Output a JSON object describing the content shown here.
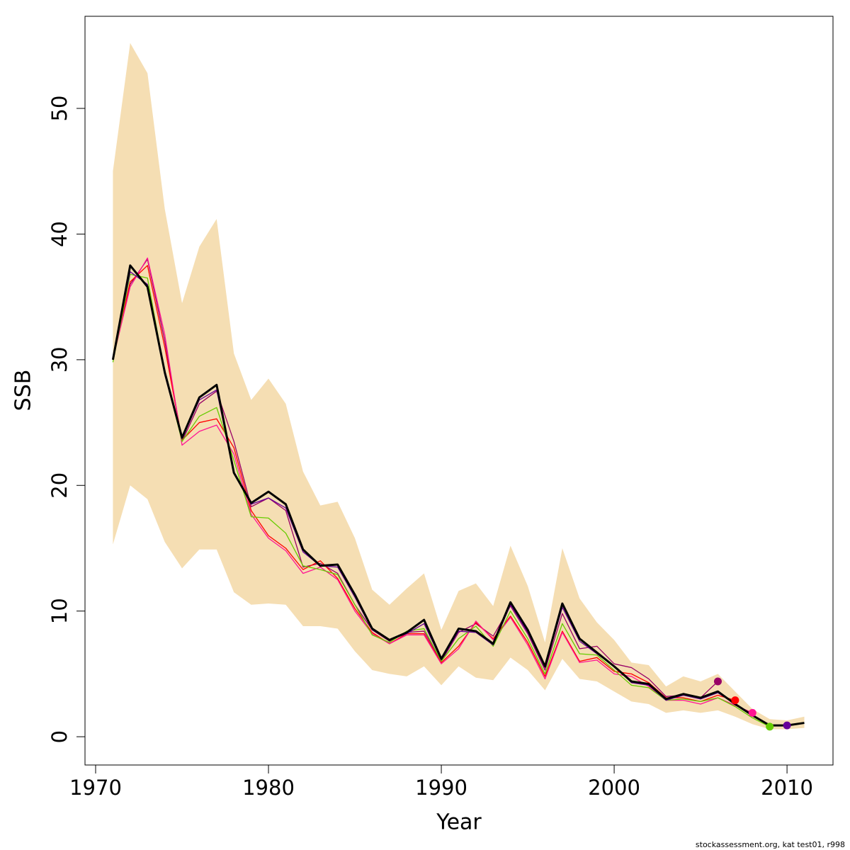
{
  "chart_data": {
    "type": "line",
    "x_label": "Year",
    "y_label": "SSB",
    "footnote": "stockassessment.org, kat  test01, r998",
    "x": [
      1971,
      1972,
      1973,
      1974,
      1975,
      1976,
      1977,
      1978,
      1979,
      1980,
      1981,
      1982,
      1983,
      1984,
      1985,
      1986,
      1987,
      1988,
      1989,
      1990,
      1991,
      1992,
      1993,
      1994,
      1995,
      1996,
      1997,
      1998,
      1999,
      2000,
      2001,
      2002,
      2003,
      2004,
      2005,
      2006,
      2007,
      2008,
      2009,
      2010,
      2011
    ],
    "xlim": [
      1969.385,
      2012.66
    ],
    "xticks": [
      1970,
      1980,
      1990,
      2000,
      2010
    ],
    "ylim": [
      -2.25,
      57.33
    ],
    "yticks": [
      0,
      10,
      20,
      30,
      40,
      50
    ],
    "band": {
      "color": "#f5deb3",
      "upper": [
        45,
        55.2,
        52.8,
        42,
        34.5,
        39,
        41.2,
        30.5,
        26.8,
        28.5,
        26.5,
        21.1,
        18.4,
        18.7,
        15.8,
        11.7,
        10.5,
        11.8,
        13.0,
        8.5,
        11.6,
        12.2,
        10.4,
        15.2,
        12.0,
        7.5,
        15.0,
        11.0,
        9.1,
        7.7,
        5.9,
        5.7,
        4.0,
        4.8,
        4.4,
        5.0,
        3.6,
        2.2,
        1.4,
        1.3,
        1.6
      ],
      "lower": [
        15.3,
        20,
        18.9,
        15.5,
        13.4,
        14.9,
        14.9,
        11.5,
        10.5,
        10.6,
        10.5,
        8.8,
        8.8,
        8.6,
        6.8,
        5.3,
        5.0,
        4.8,
        5.6,
        4.1,
        5.6,
        4.7,
        4.5,
        6.3,
        5.3,
        3.7,
        6.2,
        4.6,
        4.4,
        3.6,
        2.8,
        2.6,
        1.9,
        2.1,
        1.9,
        2.1,
        1.6,
        1.0,
        0.6,
        0.6,
        0.7
      ]
    },
    "series": [
      {
        "color": "#990066",
        "width": 1.3,
        "dot": true,
        "values": [
          30.2,
          36.0,
          38.0,
          31.5,
          23.5,
          26.5,
          27.5,
          23.5,
          18.3,
          19.0,
          18.0,
          13.5,
          13.8,
          13.0,
          10.5,
          8.5,
          7.6,
          8.3,
          8.4,
          6.0,
          8.3,
          9.0,
          8.0,
          10.4,
          8.2,
          5.3,
          9.8,
          7.0,
          7.2,
          5.8,
          5.5,
          4.6,
          3.2,
          3.3,
          3.1,
          4.4,
          null,
          null,
          null,
          null,
          null
        ]
      },
      {
        "color": "#ff0000",
        "width": 1.3,
        "dot": true,
        "values": [
          30.1,
          36.2,
          37.5,
          31.0,
          23.6,
          25.0,
          25.3,
          23.0,
          18.0,
          16.0,
          15.0,
          13.3,
          14.0,
          12.6,
          10.2,
          8.3,
          7.4,
          8.2,
          8.2,
          5.9,
          7.2,
          9.1,
          7.8,
          9.6,
          7.5,
          4.8,
          8.4,
          6.0,
          6.3,
          5.2,
          5.0,
          4.3,
          3.1,
          3.1,
          2.8,
          3.3,
          2.9,
          null,
          null,
          null,
          null
        ]
      },
      {
        "color": "#ff1493",
        "width": 1.3,
        "dot": true,
        "values": [
          30.0,
          35.8,
          38.1,
          32.0,
          23.2,
          24.3,
          24.8,
          22.5,
          17.7,
          15.8,
          14.8,
          13.0,
          13.5,
          12.5,
          10.0,
          8.2,
          7.4,
          8.1,
          8.1,
          5.8,
          7.0,
          9.2,
          7.7,
          9.5,
          7.3,
          4.6,
          8.3,
          5.9,
          6.1,
          5.0,
          4.8,
          4.0,
          2.9,
          2.9,
          2.6,
          3.1,
          2.5,
          1.9,
          null,
          null,
          null
        ]
      },
      {
        "color": "#66cc00",
        "width": 1.3,
        "dot": true,
        "values": [
          29.8,
          36.8,
          36.5,
          29.0,
          23.5,
          25.5,
          26.2,
          22.0,
          17.5,
          17.4,
          16.2,
          13.6,
          13.3,
          12.9,
          10.5,
          8.1,
          7.5,
          8.4,
          8.6,
          6.0,
          7.8,
          8.8,
          7.2,
          10.0,
          7.8,
          5.0,
          9.0,
          6.6,
          6.5,
          5.3,
          4.1,
          3.9,
          2.9,
          3.0,
          2.8,
          3.1,
          2.4,
          1.5,
          0.8,
          null,
          null
        ]
      },
      {
        "color": "#660099",
        "width": 1.3,
        "dot": true,
        "values": [
          30.1,
          37.0,
          36.0,
          28.8,
          23.7,
          26.8,
          27.6,
          21.0,
          18.5,
          19.0,
          18.2,
          14.7,
          13.6,
          13.5,
          11.1,
          8.5,
          7.7,
          8.2,
          9.0,
          6.1,
          8.4,
          8.3,
          7.3,
          10.5,
          8.3,
          5.5,
          10.3,
          7.6,
          6.6,
          5.6,
          4.3,
          4.1,
          2.9,
          3.3,
          3.0,
          3.5,
          2.6,
          1.7,
          0.9,
          0.9,
          null
        ]
      },
      {
        "color": "#000000",
        "width": 3,
        "dot": false,
        "values": [
          30,
          37.5,
          35.8,
          29,
          23.8,
          27,
          28,
          21,
          18.6,
          19.5,
          18.5,
          14.9,
          13.6,
          13.7,
          11.3,
          8.6,
          7.7,
          8.3,
          9.3,
          6.2,
          8.6,
          8.4,
          7.4,
          10.7,
          8.5,
          5.6,
          10.6,
          7.8,
          6.7,
          5.6,
          4.4,
          4.2,
          3.0,
          3.4,
          3.1,
          3.6,
          2.6,
          1.7,
          0.9,
          0.9,
          1.1
        ]
      }
    ]
  }
}
